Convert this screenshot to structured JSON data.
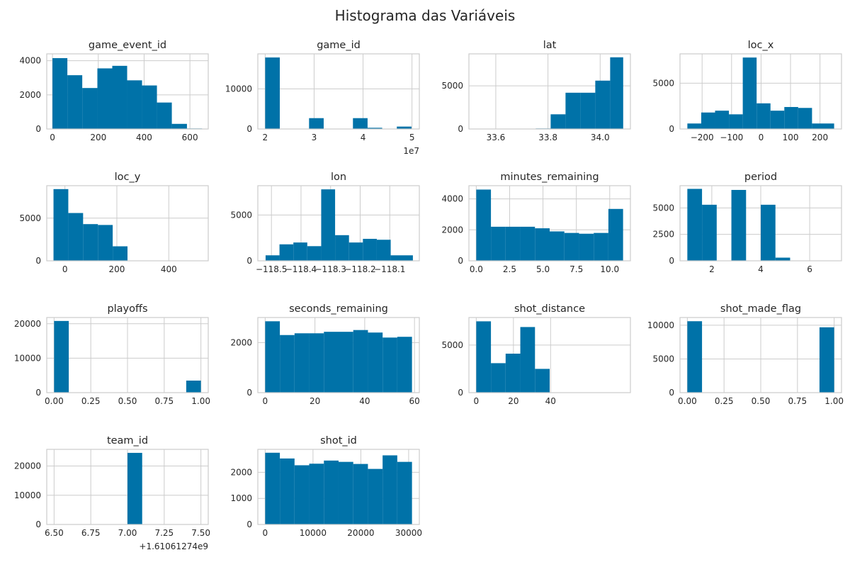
{
  "figure": {
    "title": "Histograma das Variáveis",
    "bar_color": "#0072a8",
    "grid_color": "#cccccc"
  },
  "chart_data": [
    {
      "type": "bar",
      "title": "game_event_id",
      "bins": [
        [
          0,
          65
        ],
        [
          65,
          130
        ],
        [
          130,
          196
        ],
        [
          196,
          261
        ],
        [
          261,
          326
        ],
        [
          326,
          391
        ],
        [
          391,
          456
        ],
        [
          456,
          521
        ],
        [
          521,
          587
        ],
        [
          587,
          653
        ]
      ],
      "values": [
        4150,
        3150,
        2400,
        3550,
        3700,
        2850,
        2550,
        1550,
        300,
        30
      ],
      "xlim": [
        -25,
        680
      ],
      "ylim": [
        0,
        4400
      ],
      "xticks": [
        0,
        200,
        400,
        600
      ],
      "xtick_labels": [
        "0",
        "200",
        "400",
        "600"
      ],
      "yticks": [
        0,
        2000,
        4000
      ],
      "ytick_labels": [
        "0",
        "2000",
        "4000"
      ],
      "offset_text": ""
    },
    {
      "type": "bar",
      "title": "game_id",
      "bins": [
        [
          20000012,
          22989011
        ],
        [
          22989011,
          25978011
        ],
        [
          25978011,
          28967011
        ],
        [
          28967011,
          31956011
        ],
        [
          31956011,
          34945011
        ],
        [
          34945011,
          37934011
        ],
        [
          37934011,
          40923011
        ],
        [
          40923011,
          43912011
        ],
        [
          43912011,
          46901011
        ],
        [
          46901011,
          49900088
        ]
      ],
      "values": [
        17800,
        0,
        0,
        2700,
        0,
        0,
        2700,
        300,
        0,
        600
      ],
      "xlim": [
        18500000,
        51500000
      ],
      "ylim": [
        0,
        18700
      ],
      "xticks": [
        20000000,
        30000000,
        40000000,
        50000000
      ],
      "xtick_labels": [
        "2",
        "3",
        "4",
        "5"
      ],
      "yticks": [
        0,
        10000
      ],
      "ytick_labels": [
        "0",
        "10000"
      ],
      "offset_text": "1e7"
    },
    {
      "type": "bar",
      "title": "lat",
      "bins": [
        [
          33.5253,
          33.5823
        ],
        [
          33.5823,
          33.6393
        ],
        [
          33.6393,
          33.6963
        ],
        [
          33.6963,
          33.7533
        ],
        [
          33.7533,
          33.8103
        ],
        [
          33.8103,
          33.8673
        ],
        [
          33.8673,
          33.9243
        ],
        [
          33.9243,
          33.9813
        ],
        [
          33.9813,
          34.0383
        ],
        [
          34.0383,
          34.0883
        ]
      ],
      "values": [
        5,
        10,
        20,
        30,
        60,
        1700,
        4200,
        4200,
        5600,
        8300
      ],
      "xlim": [
        33.497,
        34.116
      ],
      "ylim": [
        0,
        8700
      ],
      "xticks": [
        33.6,
        33.8,
        34.0
      ],
      "xtick_labels": [
        "33.6",
        "33.8",
        "34.0"
      ],
      "yticks": [
        0,
        5000
      ],
      "ytick_labels": [
        "0",
        "5000"
      ],
      "offset_text": ""
    },
    {
      "type": "bar",
      "title": "loc_x",
      "bins": [
        [
          -250,
          -203
        ],
        [
          -203,
          -156
        ],
        [
          -156,
          -109
        ],
        [
          -109,
          -62
        ],
        [
          -62,
          -15
        ],
        [
          -15,
          32
        ],
        [
          32,
          79
        ],
        [
          79,
          126
        ],
        [
          126,
          173
        ],
        [
          173,
          248
        ]
      ],
      "values": [
        600,
        1800,
        2000,
        1600,
        7800,
        2800,
        2000,
        2400,
        2300,
        600
      ],
      "xlim": [
        -275,
        273
      ],
      "ylim": [
        0,
        8200
      ],
      "xticks": [
        -200,
        -100,
        0,
        100,
        200
      ],
      "xtick_labels": [
        "−200",
        "−100",
        "0",
        "100",
        "200"
      ],
      "yticks": [
        0,
        5000
      ],
      "ytick_labels": [
        "0",
        "5000"
      ],
      "offset_text": ""
    },
    {
      "type": "bar",
      "title": "loc_y",
      "bins": [
        [
          -44,
          13
        ],
        [
          13,
          70
        ],
        [
          70,
          127
        ],
        [
          127,
          184
        ],
        [
          184,
          241
        ],
        [
          241,
          298
        ],
        [
          298,
          355
        ],
        [
          355,
          412
        ],
        [
          412,
          469
        ],
        [
          469,
          526
        ]
      ],
      "values": [
        8400,
        5600,
        4300,
        4200,
        1700,
        40,
        10,
        5,
        5,
        5
      ],
      "xlim": [
        -70,
        552
      ],
      "ylim": [
        0,
        8800
      ],
      "xticks": [
        0,
        200,
        400
      ],
      "xtick_labels": [
        "0",
        "200",
        "400"
      ],
      "yticks": [
        0,
        5000
      ],
      "ytick_labels": [
        "0",
        "5000"
      ],
      "offset_text": ""
    },
    {
      "type": "bar",
      "title": "lon",
      "bins": [
        [
          -118.5198,
          -118.4728
        ],
        [
          -118.4728,
          -118.4258
        ],
        [
          -118.4258,
          -118.3788
        ],
        [
          -118.3788,
          -118.3318
        ],
        [
          -118.3318,
          -118.2848
        ],
        [
          -118.2848,
          -118.2378
        ],
        [
          -118.2378,
          -118.1908
        ],
        [
          -118.1908,
          -118.1438
        ],
        [
          -118.1438,
          -118.0968
        ],
        [
          -118.0968,
          -118.0218
        ]
      ],
      "values": [
        600,
        1800,
        2000,
        1600,
        7800,
        2800,
        2000,
        2400,
        2300,
        600
      ],
      "xlim": [
        -118.546,
        -118.0
      ],
      "ylim": [
        0,
        8200
      ],
      "xticks": [
        -118.5,
        -118.4,
        -118.3,
        -118.2,
        -118.1
      ],
      "xtick_labels": [
        "−118.5",
        "−118.4",
        "−118.3",
        "−118.2",
        "−118.1"
      ],
      "yticks": [
        0,
        5000
      ],
      "ytick_labels": [
        "0",
        "5000"
      ],
      "offset_text": ""
    },
    {
      "type": "bar",
      "title": "minutes_remaining",
      "bins": [
        [
          0,
          1.1
        ],
        [
          1.1,
          2.2
        ],
        [
          2.2,
          3.3
        ],
        [
          3.3,
          4.4
        ],
        [
          4.4,
          5.5
        ],
        [
          5.5,
          6.6
        ],
        [
          6.6,
          7.7
        ],
        [
          7.7,
          8.8
        ],
        [
          8.8,
          9.9
        ],
        [
          9.9,
          11
        ]
      ],
      "values": [
        4600,
        2200,
        2200,
        2200,
        2100,
        1900,
        1800,
        1750,
        1800,
        3350
      ],
      "xlim": [
        -0.55,
        11.55
      ],
      "ylim": [
        0,
        4850
      ],
      "xticks": [
        0,
        2.5,
        5,
        7.5,
        10
      ],
      "xtick_labels": [
        "0.0",
        "2.5",
        "5.0",
        "7.5",
        "10.0"
      ],
      "yticks": [
        0,
        2000,
        4000
      ],
      "ytick_labels": [
        "0",
        "2000",
        "4000"
      ],
      "offset_text": ""
    },
    {
      "type": "bar",
      "title": "period",
      "bins": [
        [
          1,
          1.6
        ],
        [
          1.6,
          2.2
        ],
        [
          2.2,
          2.8
        ],
        [
          2.8,
          3.4
        ],
        [
          3.4,
          4.0
        ],
        [
          4.0,
          4.6
        ],
        [
          4.6,
          5.2
        ],
        [
          5.2,
          5.8
        ],
        [
          5.8,
          6.4
        ],
        [
          6.4,
          7
        ]
      ],
      "values": [
        6800,
        5300,
        0,
        6700,
        0,
        5300,
        300,
        0,
        30,
        5
      ],
      "xlim": [
        0.7,
        7.3
      ],
      "ylim": [
        0,
        7100
      ],
      "xticks": [
        2,
        4,
        6
      ],
      "xtick_labels": [
        "2",
        "4",
        "6"
      ],
      "yticks": [
        0,
        2500,
        5000
      ],
      "ytick_labels": [
        "0",
        "2500",
        "5000"
      ],
      "offset_text": ""
    },
    {
      "type": "bar",
      "title": "playoffs",
      "bins": [
        [
          0,
          0.1
        ],
        [
          0.1,
          0.2
        ],
        [
          0.2,
          0.3
        ],
        [
          0.3,
          0.4
        ],
        [
          0.4,
          0.5
        ],
        [
          0.5,
          0.6
        ],
        [
          0.6,
          0.7
        ],
        [
          0.7,
          0.8
        ],
        [
          0.8,
          0.9
        ],
        [
          0.9,
          1.0
        ]
      ],
      "values": [
        20800,
        0,
        0,
        0,
        0,
        0,
        0,
        0,
        0,
        3500
      ],
      "xlim": [
        -0.05,
        1.05
      ],
      "ylim": [
        0,
        21800
      ],
      "xticks": [
        0,
        0.25,
        0.5,
        0.75,
        1.0
      ],
      "xtick_labels": [
        "0.00",
        "0.25",
        "0.50",
        "0.75",
        "1.00"
      ],
      "yticks": [
        0,
        10000,
        20000
      ],
      "ytick_labels": [
        "0",
        "10000",
        "20000"
      ],
      "offset_text": ""
    },
    {
      "type": "bar",
      "title": "seconds_remaining",
      "bins": [
        [
          0,
          5.9
        ],
        [
          5.9,
          11.8
        ],
        [
          11.8,
          17.7
        ],
        [
          17.7,
          23.6
        ],
        [
          23.6,
          29.5
        ],
        [
          29.5,
          35.4
        ],
        [
          35.4,
          41.3
        ],
        [
          41.3,
          47.2
        ],
        [
          47.2,
          53.1
        ],
        [
          53.1,
          59
        ]
      ],
      "values": [
        2850,
        2300,
        2370,
        2370,
        2430,
        2430,
        2500,
        2400,
        2200,
        2230
      ],
      "xlim": [
        -2.95,
        61.95
      ],
      "ylim": [
        0,
        3000
      ],
      "xticks": [
        0,
        20,
        40,
        60
      ],
      "xtick_labels": [
        "0",
        "20",
        "40",
        "60"
      ],
      "yticks": [
        0,
        2000
      ],
      "ytick_labels": [
        "0",
        "2000"
      ],
      "offset_text": ""
    },
    {
      "type": "bar",
      "title": "shot_distance",
      "bins": [
        [
          0,
          7.9
        ],
        [
          7.9,
          15.8
        ],
        [
          15.8,
          23.7
        ],
        [
          23.7,
          31.6
        ],
        [
          31.6,
          39.5
        ],
        [
          39.5,
          47.4
        ],
        [
          47.4,
          55.3
        ],
        [
          55.3,
          63.2
        ],
        [
          63.2,
          71.1
        ],
        [
          71.1,
          79
        ]
      ],
      "values": [
        7500,
        3100,
        4100,
        6900,
        2500,
        20,
        20,
        10,
        5,
        5
      ],
      "xlim": [
        -3.95,
        82.95
      ],
      "ylim": [
        0,
        7900
      ],
      "xticks": [
        0,
        20,
        40
      ],
      "xtick_labels": [
        "0",
        "20",
        "40"
      ],
      "yticks": [
        0,
        5000
      ],
      "ytick_labels": [
        "0",
        "5000"
      ],
      "offset_text": ""
    },
    {
      "type": "bar",
      "title": "shot_made_flag",
      "bins": [
        [
          0,
          0.1
        ],
        [
          0.1,
          0.2
        ],
        [
          0.2,
          0.3
        ],
        [
          0.3,
          0.4
        ],
        [
          0.4,
          0.5
        ],
        [
          0.5,
          0.6
        ],
        [
          0.6,
          0.7
        ],
        [
          0.7,
          0.8
        ],
        [
          0.8,
          0.9
        ],
        [
          0.9,
          1.0
        ]
      ],
      "values": [
        10600,
        0,
        0,
        0,
        0,
        0,
        0,
        0,
        0,
        9700
      ],
      "xlim": [
        -0.05,
        1.05
      ],
      "ylim": [
        0,
        11150
      ],
      "xticks": [
        0,
        0.25,
        0.5,
        0.75,
        1.0
      ],
      "xtick_labels": [
        "0.00",
        "0.25",
        "0.50",
        "0.75",
        "1.00"
      ],
      "yticks": [
        0,
        5000,
        10000
      ],
      "ytick_labels": [
        "0",
        "5000",
        "10000"
      ],
      "offset_text": ""
    },
    {
      "type": "bar",
      "title": "team_id",
      "bins": [
        [
          6.5,
          6.6
        ],
        [
          6.6,
          6.7
        ],
        [
          6.7,
          6.8
        ],
        [
          6.8,
          6.9
        ],
        [
          6.9,
          7.0
        ],
        [
          7.0,
          7.1
        ],
        [
          7.1,
          7.2
        ],
        [
          7.2,
          7.3
        ],
        [
          7.3,
          7.4
        ],
        [
          7.4,
          7.5
        ]
      ],
      "values": [
        0,
        0,
        0,
        0,
        0,
        24500,
        0,
        0,
        0,
        0
      ],
      "xlim": [
        6.45,
        7.55
      ],
      "ylim": [
        0,
        25700
      ],
      "xticks": [
        6.5,
        6.75,
        7.0,
        7.25,
        7.5
      ],
      "xtick_labels": [
        "6.50",
        "6.75",
        "7.00",
        "7.25",
        "7.50"
      ],
      "yticks": [
        0,
        10000,
        20000
      ],
      "ytick_labels": [
        "0",
        "10000",
        "20000"
      ],
      "offset_text": "+1.61061274e9"
    },
    {
      "type": "bar",
      "title": "shot_id",
      "bins": [
        [
          1,
          3070
        ],
        [
          3070,
          6139
        ],
        [
          6139,
          9208
        ],
        [
          9208,
          12277
        ],
        [
          12277,
          15346
        ],
        [
          15346,
          18415
        ],
        [
          18415,
          21484
        ],
        [
          21484,
          24553
        ],
        [
          24553,
          27622
        ],
        [
          27622,
          30697
        ]
      ],
      "values": [
        2750,
        2530,
        2270,
        2330,
        2450,
        2400,
        2320,
        2130,
        2650,
        2400
      ],
      "xlim": [
        -1535,
        32233
      ],
      "ylim": [
        0,
        2880
      ],
      "xticks": [
        0,
        10000,
        20000,
        30000
      ],
      "xtick_labels": [
        "0",
        "10000",
        "20000",
        "30000"
      ],
      "yticks": [
        0,
        1000,
        2000
      ],
      "ytick_labels": [
        "0",
        "1000",
        "2000"
      ],
      "offset_text": ""
    }
  ]
}
